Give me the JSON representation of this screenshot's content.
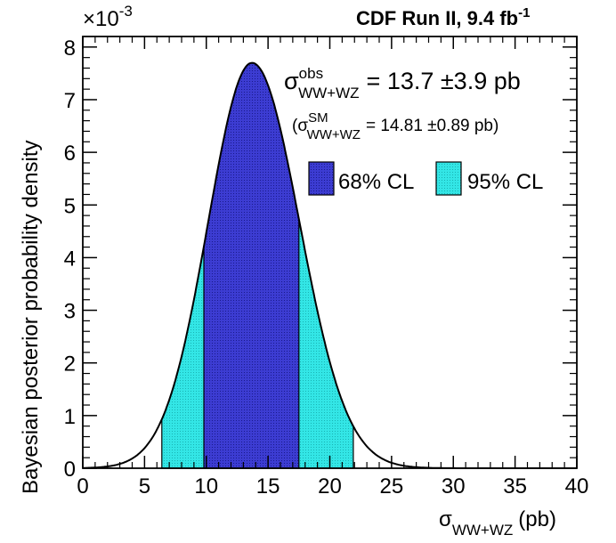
{
  "header": {
    "experiment": "CDF Run II, 9.4 fb",
    "lumi_exponent": "-1"
  },
  "annotations": {
    "obs_symbol": "σ",
    "obs_superscript": "obs",
    "obs_subscript": "WW+WZ",
    "obs_value": "= 13.7 ±3.9 pb",
    "sm_open": "(σ",
    "sm_superscript": "SM",
    "sm_subscript": "WW+WZ",
    "sm_value": "= 14.81 ±0.89 pb)"
  },
  "chart_data": {
    "type": "area",
    "xlabel": "σ",
    "xlabel_subscript": "WW+WZ",
    "xlabel_unit": "(pb)",
    "ylabel": "Bayesian posterior probability density",
    "y_multiplier": "×10",
    "y_multiplier_exponent": "-3",
    "xlim": [
      0,
      40
    ],
    "ylim": [
      0,
      0.0082
    ],
    "x_ticks": [
      0,
      5,
      10,
      15,
      20,
      25,
      30,
      35,
      40
    ],
    "y_ticks": [
      0,
      1,
      2,
      3,
      4,
      5,
      6,
      7,
      8
    ],
    "y_tick_scale": 0.001,
    "posterior": {
      "shape": "gaussian",
      "mode": 13.7,
      "peak_density": 0.0077,
      "sigma_left": 3.55,
      "sigma_right": 3.85
    },
    "sample_points": {
      "x": [
        0,
        2,
        4,
        6,
        8,
        10,
        12,
        13.7,
        16,
        18,
        20,
        22,
        24,
        26,
        28,
        30,
        35,
        40
      ],
      "y": [
        5e-05,
        0.00016,
        0.0005,
        0.0012,
        0.0024,
        0.0043,
        0.0068,
        0.0077,
        0.0064,
        0.0041,
        0.002,
        0.0009,
        0.0004,
        0.00014,
        5e-05,
        2e-05,
        0.0,
        0.0
      ]
    },
    "intervals": [
      {
        "name": "68% CL",
        "range": [
          9.8,
          17.5
        ],
        "color": "#3333cc"
      },
      {
        "name": "95% CL",
        "range": [
          6.4,
          21.9
        ],
        "color": "#33e6e6"
      }
    ],
    "legend": [
      "68% CL",
      "95% CL"
    ],
    "legend_position": "top-right",
    "grid": false
  }
}
